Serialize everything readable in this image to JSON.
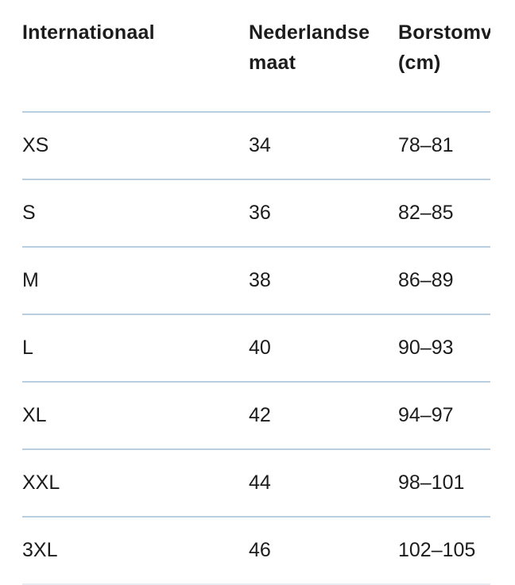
{
  "table": {
    "header": {
      "col1_line1": "Internationaal",
      "col2_line1": "Nederlandse",
      "col2_line2": "maat",
      "col3_line1": "Borstomv",
      "col3_line2": "(cm)"
    },
    "rows": [
      {
        "size": "XS",
        "nl": "34",
        "chest": "78–81"
      },
      {
        "size": "S",
        "nl": "36",
        "chest": "82–85"
      },
      {
        "size": "M",
        "nl": "38",
        "chest": "86–89"
      },
      {
        "size": "L",
        "nl": "40",
        "chest": "90–93"
      },
      {
        "size": "XL",
        "nl": "42",
        "chest": "94–97"
      },
      {
        "size": "XXL",
        "nl": "44",
        "chest": "98–101"
      },
      {
        "size": "3XL",
        "nl": "46",
        "chest": "102–105"
      }
    ]
  },
  "colors": {
    "background": "#ffffff",
    "text": "#1c1c1c",
    "divider": "#b7cfe0",
    "bottom_divider_faint": "#e7edf2"
  }
}
